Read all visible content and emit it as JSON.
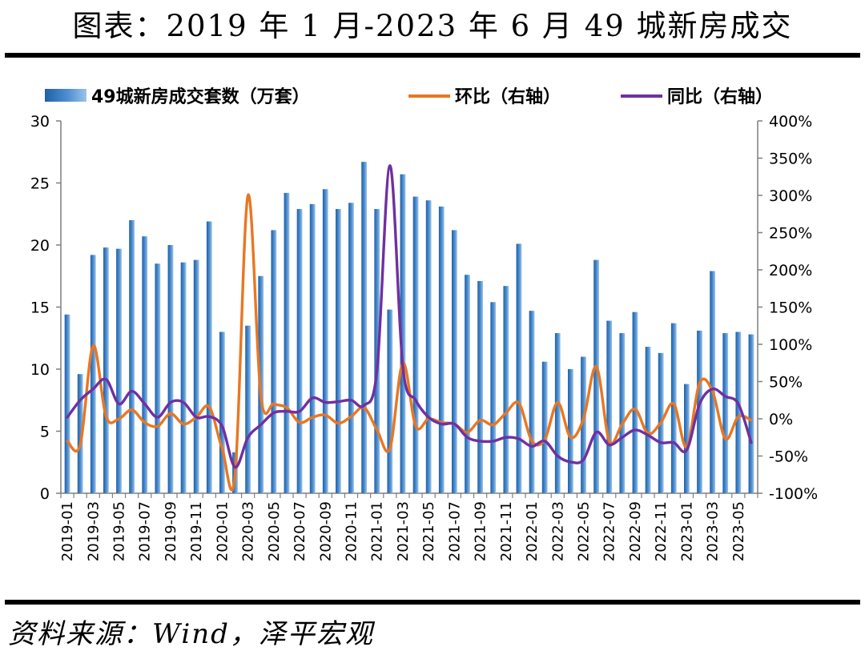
{
  "header": {
    "title": "图表：2019 年 1 月-2023 年 6 月 49 城新房成交"
  },
  "footer": {
    "source": "资料来源：Wind，泽平宏观"
  },
  "chart_data": {
    "type": "bar",
    "title": "图表：2019 年 1 月-2023 年 6 月 49 城新房成交",
    "x": [
      "2019-01",
      "2019-02",
      "2019-03",
      "2019-04",
      "2019-05",
      "2019-06",
      "2019-07",
      "2019-08",
      "2019-09",
      "2019-10",
      "2019-11",
      "2019-12",
      "2020-01",
      "2020-02",
      "2020-03",
      "2020-04",
      "2020-05",
      "2020-06",
      "2020-07",
      "2020-08",
      "2020-09",
      "2020-10",
      "2020-11",
      "2020-12",
      "2021-01",
      "2021-02",
      "2021-03",
      "2021-04",
      "2021-05",
      "2021-06",
      "2021-07",
      "2021-08",
      "2021-09",
      "2021-10",
      "2021-11",
      "2021-12",
      "2022-01",
      "2022-02",
      "2022-03",
      "2022-04",
      "2022-05",
      "2022-06",
      "2022-07",
      "2022-08",
      "2022-09",
      "2022-10",
      "2022-11",
      "2022-12",
      "2023-01",
      "2023-02",
      "2023-03",
      "2023-04",
      "2023-05",
      "2023-06"
    ],
    "x_tick_labels": [
      "2019-01",
      "2019-03",
      "2019-05",
      "2019-07",
      "2019-09",
      "2019-11",
      "2020-01",
      "2020-03",
      "2020-05",
      "2020-07",
      "2020-09",
      "2020-11",
      "2021-01",
      "2021-03",
      "2021-05",
      "2021-07",
      "2021-09",
      "2021-11",
      "2022-01",
      "2022-03",
      "2022-05",
      "2022-07",
      "2022-09",
      "2022-11",
      "2023-01",
      "2023-03",
      "2023-05"
    ],
    "y_left": {
      "min": 0,
      "max": 30,
      "ticks": [
        0,
        5,
        10,
        15,
        20,
        25,
        30
      ],
      "tick_labels": [
        "0",
        "5",
        "10",
        "15",
        "20",
        "25",
        "30"
      ]
    },
    "y_right": {
      "min": -100,
      "max": 400,
      "ticks": [
        -100,
        -50,
        0,
        50,
        100,
        150,
        200,
        250,
        300,
        350,
        400
      ],
      "tick_labels": [
        "-100%",
        "-50%",
        "0%",
        "50%",
        "100%",
        "150%",
        "200%",
        "250%",
        "300%",
        "350%",
        "400%"
      ]
    },
    "legend_position": "top",
    "series": [
      {
        "name": "49城新房成交套数（万套）",
        "type": "bar",
        "axis": "left",
        "color": "#3d7fc1",
        "values": [
          14.4,
          9.6,
          19.2,
          19.8,
          19.7,
          22.0,
          20.7,
          18.5,
          20.0,
          18.6,
          18.8,
          21.9,
          13.0,
          3.3,
          13.5,
          17.5,
          21.2,
          24.2,
          22.9,
          23.3,
          24.5,
          22.9,
          23.4,
          26.7,
          22.9,
          14.8,
          25.7,
          23.9,
          23.6,
          23.1,
          21.2,
          17.6,
          17.1,
          15.4,
          16.7,
          20.1,
          14.7,
          10.6,
          12.9,
          10.0,
          11.0,
          18.8,
          13.9,
          12.9,
          14.6,
          11.8,
          11.3,
          13.7,
          8.8,
          13.1,
          17.9,
          12.9,
          13.0,
          12.8
        ]
      },
      {
        "name": "环比（右轴）",
        "type": "line",
        "axis": "right",
        "color": "#e87722",
        "values": [
          -30,
          -35,
          98,
          3,
          0,
          12,
          -5,
          -10,
          7,
          -7,
          2,
          16,
          -40,
          -75,
          300,
          30,
          20,
          15,
          -5,
          2,
          5,
          -6,
          3,
          15,
          -15,
          -40,
          75,
          -10,
          0,
          -5,
          -7,
          -18,
          -2,
          -8,
          8,
          21,
          -30,
          -28,
          22,
          -25,
          0,
          70,
          -30,
          -7,
          13,
          -20,
          -5,
          20,
          -38,
          48,
          37,
          -27,
          3,
          -2
        ]
      },
      {
        "name": "同比（右轴）",
        "type": "line",
        "axis": "right",
        "color": "#7030a0",
        "values": [
          2,
          25,
          40,
          53,
          20,
          37,
          20,
          2,
          22,
          22,
          2,
          3,
          -10,
          -65,
          -25,
          -8,
          8,
          10,
          10,
          28,
          22,
          23,
          25,
          18,
          65,
          340,
          70,
          25,
          2,
          -7,
          -7,
          -25,
          -30,
          -30,
          -25,
          -27,
          -37,
          -30,
          -50,
          -58,
          -55,
          -18,
          -35,
          -25,
          -15,
          -22,
          -32,
          -32,
          -42,
          20,
          40,
          30,
          20,
          -32
        ]
      }
    ]
  }
}
